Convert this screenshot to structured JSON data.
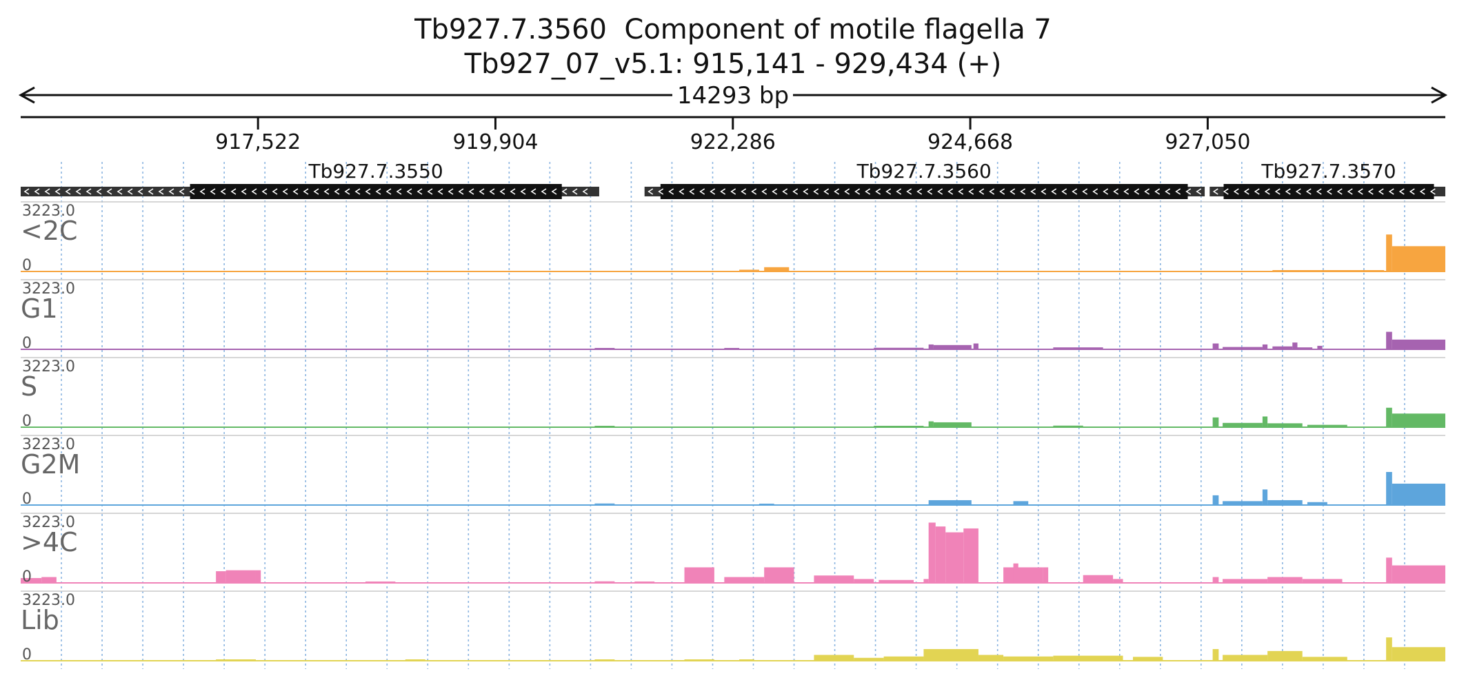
{
  "title": "Tb927.7.3560  Component of motile flagella 7",
  "subtitle": "Tb927_07_v5.1: 915,141 - 929,434 (+)",
  "span_label": "14293 bp",
  "chart_data": {
    "type": "area",
    "x_range": [
      915141,
      929434
    ],
    "x_ticks": [
      917522,
      919904,
      922286,
      924668,
      927050
    ],
    "x_tick_labels": [
      "917,522",
      "919,904",
      "922,286",
      "924,668",
      "927,050"
    ],
    "ymax_label": "3223.0",
    "ymin_label": "0",
    "ylim": [
      0,
      3223.0
    ],
    "grid": true,
    "genes": [
      {
        "name": "Tb927.7.3550",
        "strand": "-",
        "utr": [
          915141,
          920945
        ],
        "cds": [
          916840,
          920570
        ]
      },
      {
        "name": "Tb927.7.3560",
        "strand": "-",
        "utr": [
          921400,
          927020
        ],
        "cds": [
          921560,
          926850
        ]
      },
      {
        "name": "Tb927.7.3570",
        "strand": "-",
        "utr": [
          927070,
          929434
        ],
        "cds": [
          927210,
          929320
        ]
      }
    ],
    "tracks": [
      {
        "name": "<2C",
        "color": "#f7a540",
        "blocks": [
          [
            922350,
            922550,
            90
          ],
          [
            922600,
            922850,
            220
          ],
          [
            927700,
            928820,
            30
          ],
          [
            928840,
            928900,
            1900
          ],
          [
            928900,
            929434,
            1300
          ]
        ]
      },
      {
        "name": "G1",
        "color": "#a663b0",
        "blocks": [
          [
            920900,
            921100,
            60
          ],
          [
            922200,
            922350,
            40
          ],
          [
            923700,
            924200,
            80
          ],
          [
            924250,
            924300,
            250
          ],
          [
            924300,
            924680,
            220
          ],
          [
            924700,
            924750,
            300
          ],
          [
            925500,
            926000,
            100
          ],
          [
            927100,
            927160,
            300
          ],
          [
            927200,
            927600,
            120
          ],
          [
            927600,
            927650,
            250
          ],
          [
            927700,
            927900,
            150
          ],
          [
            927900,
            927950,
            350
          ],
          [
            927950,
            928100,
            100
          ],
          [
            928150,
            928200,
            180
          ],
          [
            928840,
            928900,
            900
          ],
          [
            928900,
            929434,
            500
          ]
        ]
      },
      {
        "name": "S",
        "color": "#63b965",
        "blocks": [
          [
            920900,
            921100,
            50
          ],
          [
            923700,
            924200,
            60
          ],
          [
            924250,
            924300,
            300
          ],
          [
            924300,
            924680,
            250
          ],
          [
            925500,
            925800,
            80
          ],
          [
            927100,
            927160,
            500
          ],
          [
            927200,
            927600,
            220
          ],
          [
            927600,
            927650,
            550
          ],
          [
            927650,
            928000,
            200
          ],
          [
            928050,
            928450,
            120
          ],
          [
            928840,
            928900,
            1000
          ],
          [
            928900,
            929434,
            700
          ]
        ]
      },
      {
        "name": "G2M",
        "color": "#5da5dc",
        "blocks": [
          [
            920900,
            921100,
            80
          ],
          [
            922550,
            922700,
            70
          ],
          [
            924250,
            924680,
            250
          ],
          [
            925100,
            925250,
            200
          ],
          [
            927100,
            927160,
            500
          ],
          [
            927200,
            927600,
            200
          ],
          [
            927600,
            927650,
            800
          ],
          [
            927650,
            928000,
            250
          ],
          [
            928050,
            928250,
            150
          ],
          [
            928840,
            928900,
            1700
          ],
          [
            928900,
            929434,
            1100
          ]
        ]
      },
      {
        "name": ">4C",
        "color": "#f083b8",
        "blocks": [
          [
            915141,
            915350,
            250
          ],
          [
            915350,
            915500,
            300
          ],
          [
            917100,
            917200,
            600
          ],
          [
            917200,
            917500,
            650
          ],
          [
            917500,
            917550,
            650
          ],
          [
            918600,
            918900,
            30
          ],
          [
            920900,
            921100,
            80
          ],
          [
            921300,
            921500,
            60
          ],
          [
            921800,
            922100,
            800
          ],
          [
            922200,
            922600,
            300
          ],
          [
            922600,
            922900,
            800
          ],
          [
            923100,
            923500,
            380
          ],
          [
            923500,
            923700,
            200
          ],
          [
            923750,
            924100,
            150
          ],
          [
            924200,
            924250,
            200
          ],
          [
            924250,
            924320,
            3100
          ],
          [
            924320,
            924420,
            2900
          ],
          [
            924420,
            924600,
            2600
          ],
          [
            924600,
            924750,
            2800
          ],
          [
            925000,
            925400,
            800
          ],
          [
            925100,
            925150,
            1000
          ],
          [
            925400,
            925450,
            800
          ],
          [
            925800,
            926100,
            400
          ],
          [
            926100,
            926200,
            200
          ],
          [
            927100,
            927160,
            300
          ],
          [
            927200,
            927650,
            200
          ],
          [
            927650,
            928000,
            300
          ],
          [
            928000,
            928400,
            200
          ],
          [
            928840,
            928900,
            1300
          ],
          [
            928900,
            929434,
            900
          ]
        ]
      },
      {
        "name": "Lib",
        "color": "#e2d453",
        "blocks": [
          [
            917100,
            917500,
            40
          ],
          [
            919000,
            919200,
            20
          ],
          [
            920900,
            921100,
            40
          ],
          [
            921800,
            922100,
            60
          ],
          [
            922350,
            922500,
            50
          ],
          [
            923100,
            923500,
            300
          ],
          [
            923500,
            923800,
            150
          ],
          [
            923800,
            924200,
            220
          ],
          [
            924200,
            924750,
            600
          ],
          [
            924750,
            925000,
            300
          ],
          [
            925000,
            925500,
            220
          ],
          [
            925500,
            926200,
            260
          ],
          [
            926300,
            926600,
            200
          ],
          [
            927100,
            927160,
            600
          ],
          [
            927200,
            927650,
            300
          ],
          [
            927650,
            928000,
            500
          ],
          [
            928000,
            928450,
            200
          ],
          [
            928840,
            928900,
            1200
          ],
          [
            928900,
            929434,
            700
          ]
        ]
      }
    ]
  }
}
